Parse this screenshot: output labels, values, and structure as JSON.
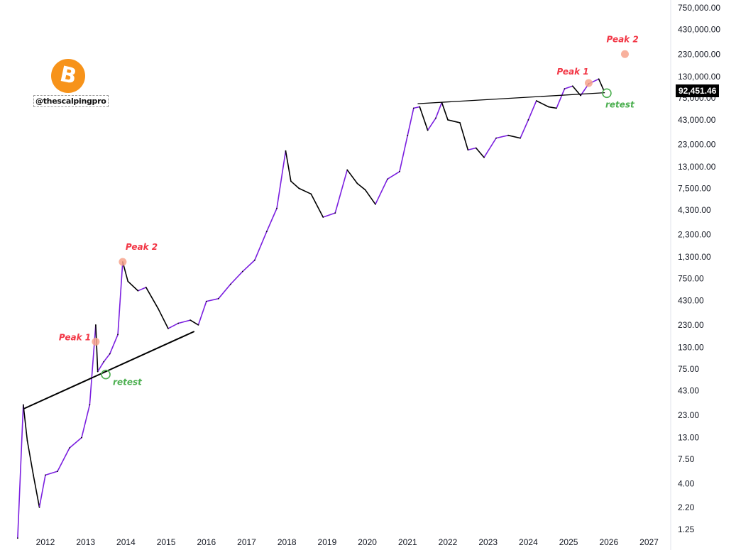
{
  "watermark": {
    "handle": "@thescalpingpro",
    "logo_icon": "bitcoin-icon",
    "logo_letter": "B",
    "logo_color": "#f7931a"
  },
  "last_price": "92,451.46",
  "chart_data": {
    "type": "line",
    "title": "",
    "scale": "log",
    "xlabel": "",
    "ylabel": "",
    "x_ticks": [
      "2012",
      "2013",
      "2014",
      "2015",
      "2016",
      "2017",
      "2018",
      "2019",
      "2020",
      "2021",
      "2022",
      "2023",
      "2024",
      "2025",
      "2026",
      "2027"
    ],
    "y_ticks": [
      "750,000.00",
      "430,000.00",
      "230,000.00",
      "130,000.00",
      "75,000.00",
      "43,000.00",
      "23,000.00",
      "13,000.00",
      "7,500.00",
      "4,300.00",
      "2,300.00",
      "1,300.00",
      "750.00",
      "430.00",
      "230.00",
      "130.00",
      "75.00",
      "43.00",
      "23.00",
      "13.00",
      "7.50",
      "4.00",
      "2.20",
      "1.25"
    ],
    "y_tick_values": [
      750000,
      430000,
      230000,
      130000,
      75000,
      43000,
      23000,
      13000,
      7500,
      4300,
      2300,
      1300,
      750,
      430,
      230,
      130,
      75,
      43,
      23,
      13,
      7.5,
      4,
      2.2,
      1.25
    ],
    "ylim": [
      1.25,
      750000
    ],
    "xlim": [
      2011.3,
      2027.5
    ],
    "series": [
      {
        "name": "BTC",
        "x": [
          2011.31,
          2011.45,
          2011.55,
          2011.7,
          2011.85,
          2012.0,
          2012.3,
          2012.6,
          2012.9,
          2013.1,
          2013.25,
          2013.3,
          2013.45,
          2013.6,
          2013.8,
          2013.92,
          2014.05,
          2014.3,
          2014.5,
          2014.8,
          2015.05,
          2015.3,
          2015.6,
          2015.8,
          2016.0,
          2016.3,
          2016.6,
          2016.9,
          2017.2,
          2017.5,
          2017.75,
          2017.97,
          2018.1,
          2018.3,
          2018.6,
          2018.9,
          2019.2,
          2019.5,
          2019.75,
          2019.95,
          2020.2,
          2020.5,
          2020.8,
          2021.0,
          2021.15,
          2021.3,
          2021.5,
          2021.7,
          2021.85,
          2022.0,
          2022.3,
          2022.5,
          2022.7,
          2022.9,
          2023.2,
          2023.5,
          2023.8,
          2024.0,
          2024.2,
          2024.5,
          2024.7,
          2024.9,
          2025.1,
          2025.3,
          2025.5,
          2025.75,
          2025.87
        ],
        "y": [
          1.0,
          30,
          12,
          5,
          2.2,
          5,
          5.5,
          10,
          13,
          30,
          230,
          70,
          90,
          110,
          180,
          1150,
          700,
          550,
          600,
          350,
          210,
          240,
          260,
          230,
          420,
          450,
          650,
          900,
          1200,
          2500,
          4500,
          19500,
          9000,
          7500,
          6500,
          3600,
          4000,
          12000,
          8500,
          7200,
          5000,
          9500,
          11500,
          29000,
          58000,
          60000,
          33000,
          45000,
          67000,
          43000,
          40000,
          20000,
          21000,
          16500,
          27000,
          29000,
          27000,
          43000,
          70000,
          60000,
          58000,
          95000,
          102000,
          80000,
          108000,
          122000,
          92451
        ]
      }
    ],
    "trendlines": [
      {
        "from": [
          2011.45,
          27
        ],
        "to": [
          2015.7,
          195
        ]
      },
      {
        "from": [
          2021.25,
          65000
        ],
        "to": [
          2025.9,
          86000
        ]
      }
    ],
    "annotations": [
      {
        "text": "Peak 1",
        "x": 2013.25,
        "y": 150,
        "color": "#f23645"
      },
      {
        "text": "Peak 2",
        "x": 2013.92,
        "y": 1150,
        "color": "#f23645"
      },
      {
        "text": "retest",
        "x": 2013.5,
        "y": 65,
        "color": "#4caf50"
      },
      {
        "text": "Peak 1",
        "x": 2025.5,
        "y": 110000,
        "color": "#f23645"
      },
      {
        "text": "Peak 2",
        "x": 2026.4,
        "y": 230000,
        "color": "#f23645"
      },
      {
        "text": "retest",
        "x": 2025.95,
        "y": 85000,
        "color": "#4caf50"
      }
    ],
    "colors": {
      "up": "#7b1fe0",
      "down": "#000000",
      "peak": "#f7a38c",
      "retest": "#4caf50",
      "label_red": "#f23645"
    }
  }
}
